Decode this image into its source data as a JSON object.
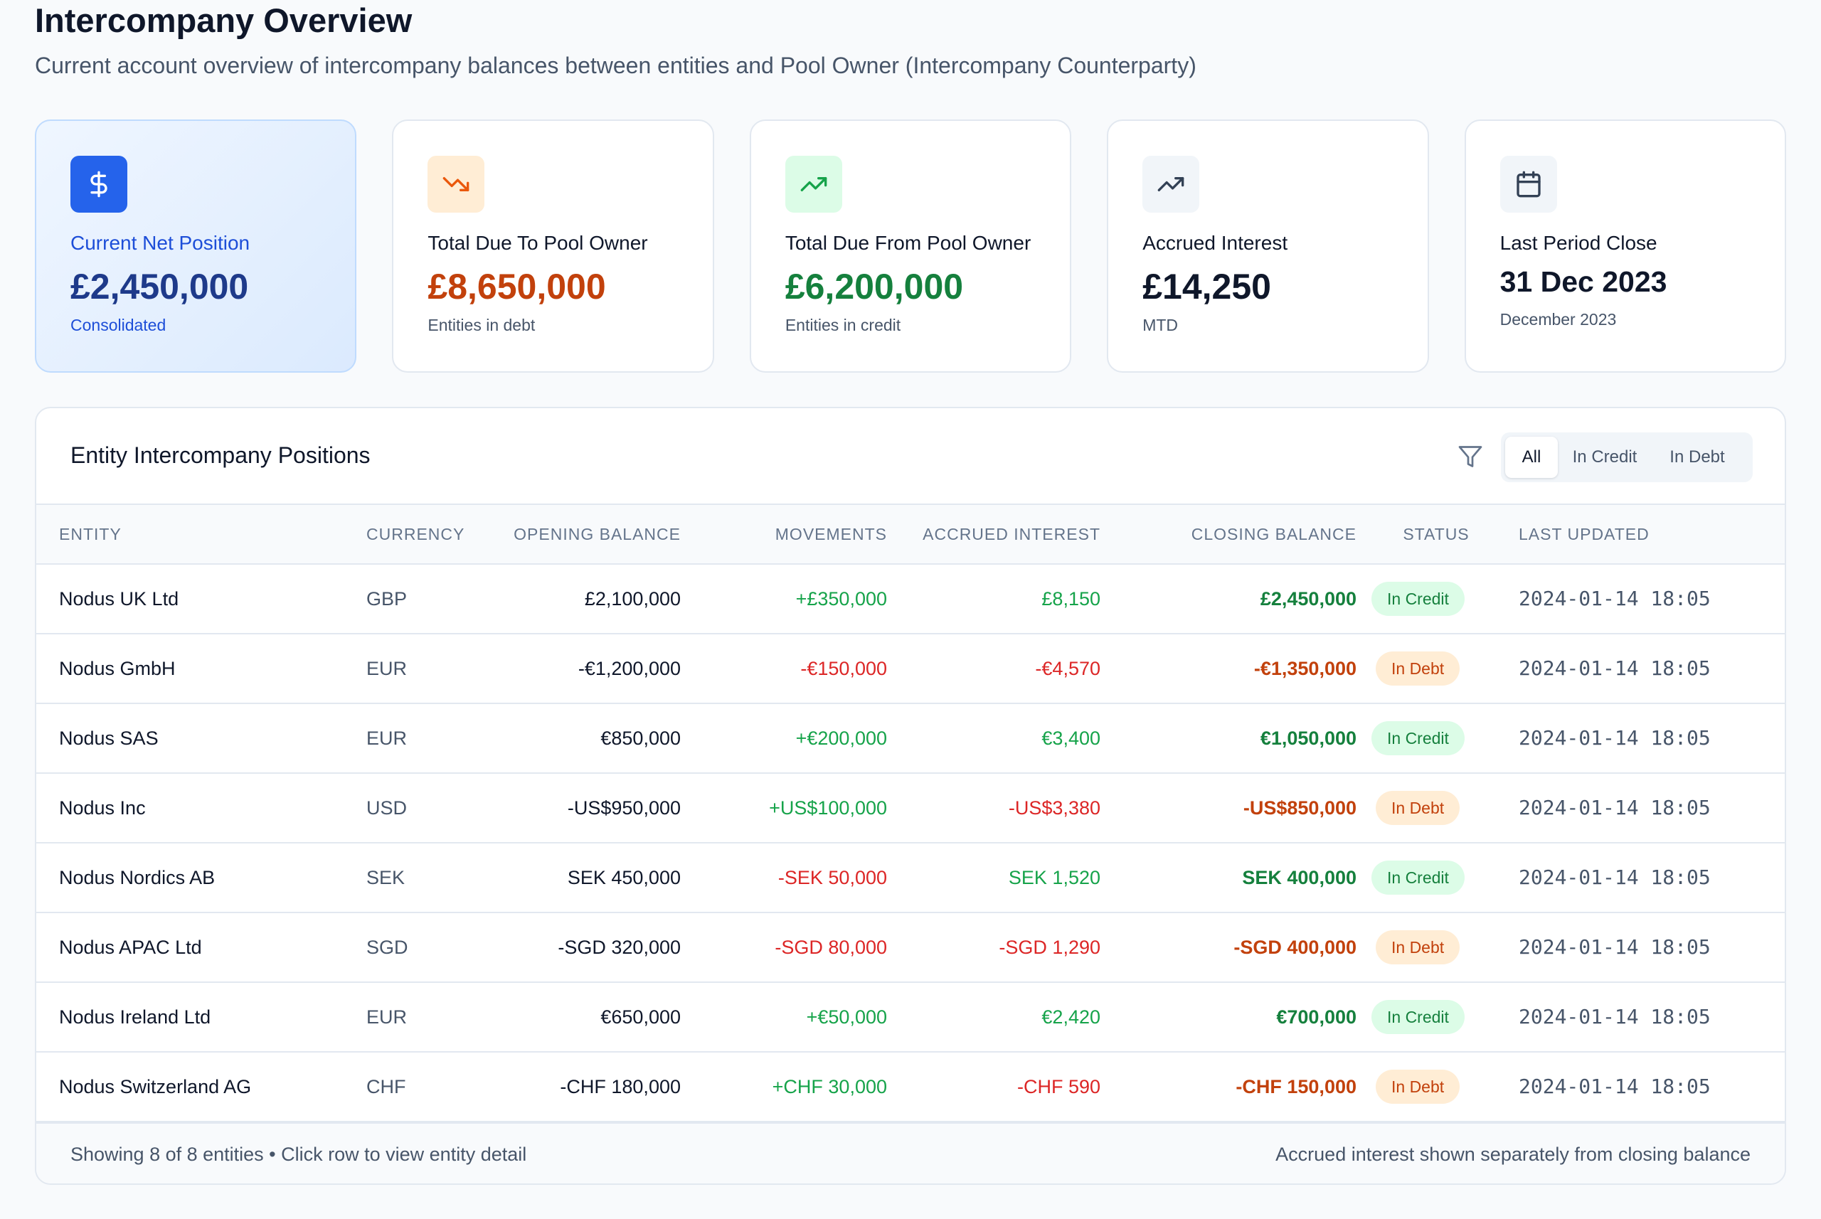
{
  "header": {
    "title": "Intercompany Overview",
    "subtitle": "Current account overview of intercompany balances between entities and Pool Owner (Intercompany Counterparty)"
  },
  "cards": [
    {
      "label": "Current Net Position",
      "value": "£2,450,000",
      "note": "Consolidated",
      "icon": "dollar-icon",
      "accent": "#1d4ed8"
    },
    {
      "label": "Total Due To Pool Owner",
      "value": "£8,650,000",
      "note": "Entities in debt",
      "icon": "trending-down-icon",
      "accent": "#c2410c"
    },
    {
      "label": "Total Due From Pool Owner",
      "value": "£6,200,000",
      "note": "Entities in credit",
      "icon": "trending-up-icon",
      "accent": "#15803d"
    },
    {
      "label": "Accrued Interest",
      "value": "£14,250",
      "note": "MTD",
      "icon": "trending-up-icon",
      "accent": "#0f172a"
    },
    {
      "label": "Last Period Close",
      "value": "31 Dec 2023",
      "note": "December 2023",
      "icon": "calendar-icon",
      "accent": "#0f172a"
    }
  ],
  "table": {
    "title": "Entity Intercompany Positions",
    "filter": {
      "options": [
        "All",
        "In Credit",
        "In Debt"
      ],
      "selected": "All"
    },
    "columns": [
      "ENTITY",
      "CURRENCY",
      "OPENING BALANCE",
      "MOVEMENTS",
      "ACCRUED INTEREST",
      "CLOSING BALANCE",
      "STATUS",
      "LAST UPDATED"
    ],
    "rows": [
      {
        "entity": "Nodus UK Ltd",
        "currency": "GBP",
        "opening": "£2,100,000",
        "movements": "+£350,000",
        "interest": "£8,150",
        "closing": "£2,450,000",
        "status": "In Credit",
        "updated": "2024-01-14 18:05"
      },
      {
        "entity": "Nodus GmbH",
        "currency": "EUR",
        "opening": "-€1,200,000",
        "movements": "-€150,000",
        "interest": "-€4,570",
        "closing": "-€1,350,000",
        "status": "In Debt",
        "updated": "2024-01-14 18:05"
      },
      {
        "entity": "Nodus SAS",
        "currency": "EUR",
        "opening": "€850,000",
        "movements": "+€200,000",
        "interest": "€3,400",
        "closing": "€1,050,000",
        "status": "In Credit",
        "updated": "2024-01-14 18:05"
      },
      {
        "entity": "Nodus Inc",
        "currency": "USD",
        "opening": "-US$950,000",
        "movements": "+US$100,000",
        "interest": "-US$3,380",
        "closing": "-US$850,000",
        "status": "In Debt",
        "updated": "2024-01-14 18:05"
      },
      {
        "entity": "Nodus Nordics AB",
        "currency": "SEK",
        "opening": "SEK 450,000",
        "movements": "-SEK 50,000",
        "interest": "SEK 1,520",
        "closing": "SEK 400,000",
        "status": "In Credit",
        "updated": "2024-01-14 18:05"
      },
      {
        "entity": "Nodus APAC Ltd",
        "currency": "SGD",
        "opening": "-SGD 320,000",
        "movements": "-SGD 80,000",
        "interest": "-SGD 1,290",
        "closing": "-SGD 400,000",
        "status": "In Debt",
        "updated": "2024-01-14 18:05"
      },
      {
        "entity": "Nodus Ireland Ltd",
        "currency": "EUR",
        "opening": "€650,000",
        "movements": "+€50,000",
        "interest": "€2,420",
        "closing": "€700,000",
        "status": "In Credit",
        "updated": "2024-01-14 18:05"
      },
      {
        "entity": "Nodus Switzerland AG",
        "currency": "CHF",
        "opening": "-CHF 180,000",
        "movements": "+CHF 30,000",
        "interest": "-CHF 590",
        "closing": "-CHF 150,000",
        "status": "In Debt",
        "updated": "2024-01-14 18:05"
      }
    ],
    "footer_left": "Showing 8 of 8 entities • Click row to view entity detail",
    "footer_right": "Accrued interest shown separately from closing balance"
  },
  "colors": {
    "primary": "#1d4ed8",
    "positive": "#16a34a",
    "negative": "#dc2626",
    "credit_badge_bg": "#dcfce7",
    "debt_badge_bg": "#ffedd5"
  }
}
